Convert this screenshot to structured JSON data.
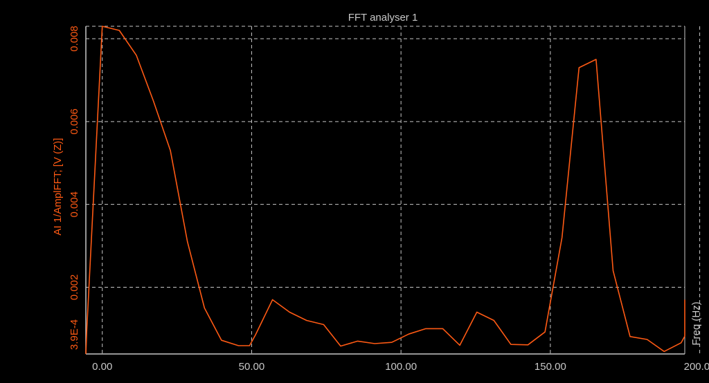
{
  "colors": {
    "background": "#000000",
    "axis": "#c8c8c8",
    "grid": "#c8c8c8",
    "series": "#ff5a14",
    "y_labels": "#ff5a14",
    "x_labels": "#c8c8c8",
    "title": "#c8c8c8"
  },
  "chart_data": {
    "type": "line",
    "title": "FFT analyser 1",
    "xlabel": "Freq (Hz)",
    "ylabel": "AI 1/AmplFFT; [V (Z)]",
    "xlim": [
      -5.5,
      195
    ],
    "ylim": [
      0.00039,
      0.0083
    ],
    "x_ticks": [
      0,
      50,
      100,
      150,
      200
    ],
    "x_tick_labels": [
      "0.00",
      "50.00",
      "100.00",
      "150.00",
      "200.00"
    ],
    "y_ticks": [
      0.00039,
      0.002,
      0.004,
      0.006,
      0.008
    ],
    "y_tick_labels": [
      "3.9E-4",
      "0.002",
      "0.004",
      "0.006",
      "0.008"
    ],
    "grid": true,
    "series": [
      {
        "x": [
          -5.5,
          -5.2,
          0,
          5.7,
          11.4,
          17.1,
          22.8,
          28.5,
          34.2,
          39.9,
          45.6,
          49.3,
          51.3,
          57,
          62.7,
          68.4,
          74.1,
          79.8,
          85.5,
          91.2,
          96.9,
          102.6,
          108.3,
          114,
          119.7,
          125.4,
          131.1,
          136.8,
          142.5,
          148.2,
          153.9,
          159.6,
          165.3,
          171,
          176.7,
          182.4,
          188.1,
          193.8,
          199.5,
          205.2
        ],
        "y": [
          0.00039,
          0.00096,
          0.0085,
          0.0082,
          0.0076,
          0.0065,
          0.0053,
          0.0031,
          0.0015,
          0.00072,
          0.00059,
          0.00059,
          0.00085,
          0.0017,
          0.0014,
          0.0012,
          0.0011,
          0.00058,
          0.0007,
          0.00064,
          0.00067,
          0.00087,
          0.001,
          0.001,
          0.0006,
          0.0014,
          0.0012,
          0.00062,
          0.00061,
          0.00092,
          0.0032,
          0.0073,
          0.0075,
          0.0024,
          0.00081,
          0.00074,
          0.00045,
          0.00066,
          0.00082,
          0.0017
        ]
      }
    ]
  }
}
